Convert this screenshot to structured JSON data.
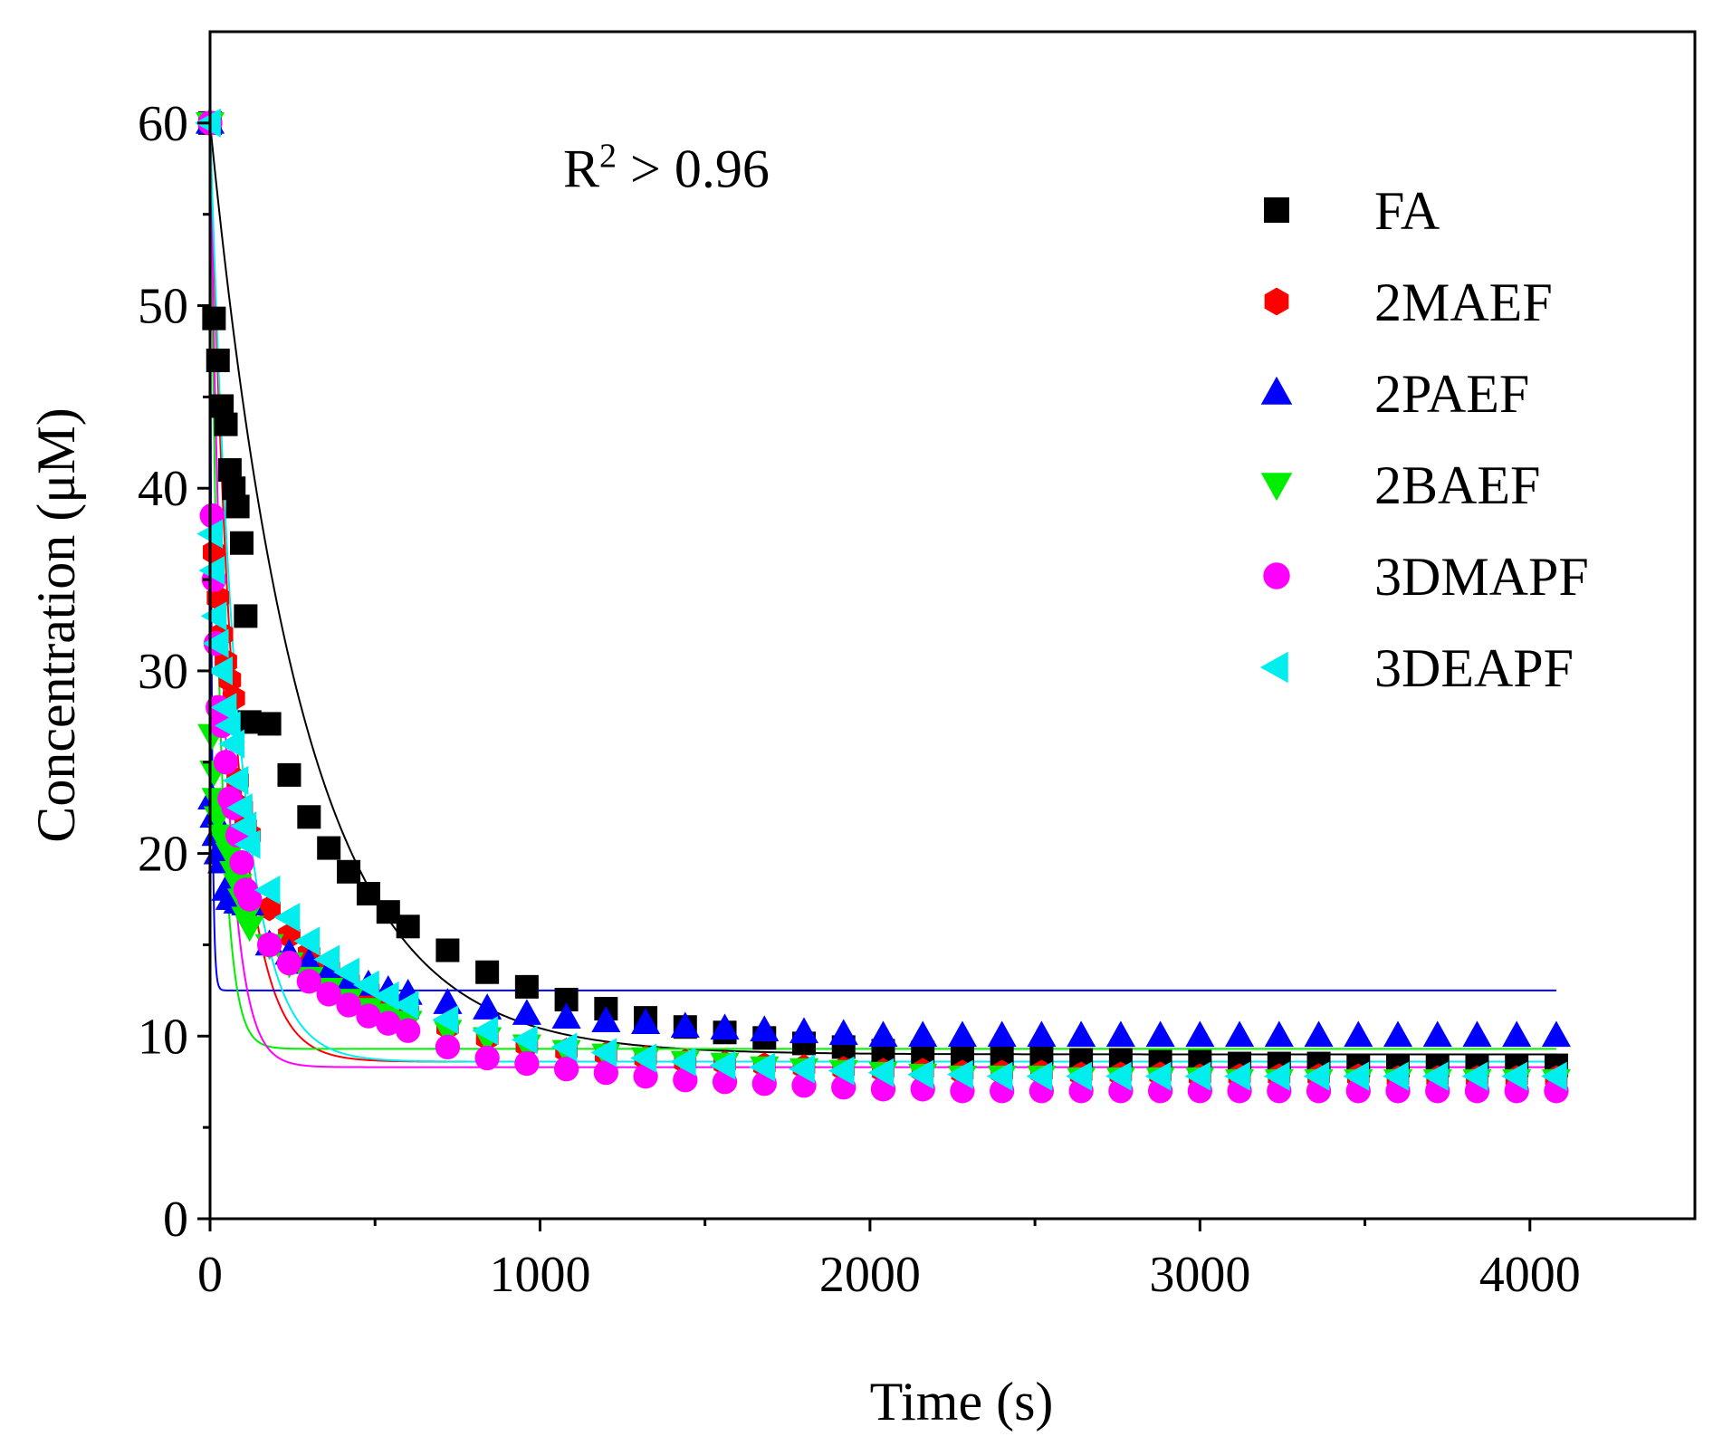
{
  "chart_data": {
    "type": "scatter",
    "title": "",
    "xlabel": "Time (s)",
    "ylabel": "Concentration (μM)",
    "xlim": [
      0,
      4500
    ],
    "ylim": [
      0,
      65
    ],
    "xticks": [
      0,
      1000,
      2000,
      3000,
      4000
    ],
    "xtick_labels": [
      "0",
      "1000",
      "2000",
      "3000",
      "4000"
    ],
    "yticks": [
      0,
      10,
      20,
      30,
      40,
      50,
      60
    ],
    "ytick_labels": [
      "0",
      "10",
      "20",
      "30",
      "40",
      "50",
      "60"
    ],
    "annotation": {
      "base": "R",
      "sup": "2",
      "rest": " > 0.96",
      "x": 1070,
      "y": 56.5
    },
    "legend_position": "top-right",
    "series": [
      {
        "name": "FA",
        "color": "#000000",
        "marker": "square",
        "x": [
          0,
          12,
          24,
          36,
          48,
          60,
          72,
          84,
          96,
          108,
          120,
          180,
          240,
          300,
          360,
          420,
          480,
          540,
          600,
          720,
          840,
          960,
          1080,
          1200,
          1320,
          1440,
          1560,
          1680,
          1800,
          1920,
          2040,
          2160,
          2280,
          2400,
          2520,
          2640,
          2760,
          2880,
          3000,
          3120,
          3240,
          3360,
          3480,
          3600,
          3720,
          3840,
          3960,
          4080
        ],
        "y": [
          60,
          49.3,
          47,
          44.5,
          43.5,
          41,
          40,
          39,
          37,
          33,
          27.2,
          27.1,
          24.3,
          22,
          20.3,
          19,
          17.8,
          16.8,
          16,
          14.7,
          13.5,
          12.7,
          12,
          11.5,
          11,
          10.5,
          10.2,
          9.9,
          9.6,
          9.4,
          9.2,
          9.1,
          9.0,
          8.9,
          8.8,
          8.7,
          8.7,
          8.6,
          8.6,
          8.5,
          8.5,
          8.5,
          8.4,
          8.4,
          8.4,
          8.4,
          8.4,
          8.4
        ]
      },
      {
        "name": "2MAEF",
        "color": "#ff0000",
        "marker": "hexagon",
        "x": [
          0,
          12,
          24,
          36,
          48,
          60,
          72,
          84,
          96,
          108,
          120,
          180,
          240,
          300,
          360,
          420,
          480,
          540,
          600,
          720,
          840,
          960,
          1080,
          1200,
          1320,
          1440,
          1560,
          1680,
          1800,
          1920,
          2040,
          2160,
          2280,
          2400,
          2520,
          2640,
          2760,
          2880,
          3000,
          3120,
          3240,
          3360,
          3480,
          3600,
          3720,
          3840,
          3960,
          4080
        ],
        "y": [
          60,
          36.5,
          34,
          32,
          30.5,
          29.5,
          28.5,
          24,
          22.5,
          21.5,
          21,
          17,
          15.5,
          14.5,
          13.7,
          13,
          12.5,
          11.8,
          11.3,
          10.5,
          9.9,
          9.5,
          9.2,
          9.0,
          8.8,
          8.6,
          8.5,
          8.4,
          8.3,
          8.2,
          8.1,
          8.1,
          8.0,
          8.0,
          8.0,
          7.9,
          7.9,
          7.9,
          7.8,
          7.8,
          7.8,
          7.8,
          7.8,
          7.7,
          7.7,
          7.7,
          7.7,
          7.7
        ]
      },
      {
        "name": "2PAEF",
        "color": "#0000ff",
        "marker": "triangle-up",
        "x": [
          0,
          6,
          12,
          18,
          24,
          36,
          48,
          60,
          72,
          84,
          96,
          108,
          120,
          180,
          240,
          300,
          360,
          420,
          480,
          540,
          600,
          720,
          840,
          960,
          1080,
          1200,
          1320,
          1440,
          1560,
          1680,
          1800,
          1920,
          2040,
          2160,
          2280,
          2400,
          2520,
          2640,
          2760,
          2880,
          3000,
          3120,
          3240,
          3360,
          3480,
          3600,
          3720,
          3840,
          3960,
          4080
        ],
        "y": [
          60,
          23,
          22,
          21,
          20,
          19.5,
          18,
          17.5,
          17.5,
          17.3,
          17.3,
          17.2,
          17.2,
          15,
          14.5,
          14,
          13.5,
          13,
          12.8,
          12.5,
          12.3,
          11.8,
          11.5,
          11.2,
          11,
          10.8,
          10.7,
          10.5,
          10.4,
          10.3,
          10.2,
          10.1,
          10.0,
          10.0,
          10.0,
          10.0,
          10.0,
          10.0,
          10.0,
          10.0,
          10.0,
          10.0,
          10.0,
          10.0,
          10.0,
          10.0,
          10.0,
          10.0,
          10.0,
          10.0
        ]
      },
      {
        "name": "2BAEF",
        "color": "#00ee00",
        "marker": "triangle-down",
        "x": [
          0,
          6,
          12,
          18,
          24,
          36,
          48,
          60,
          72,
          84,
          96,
          108,
          120,
          180,
          240,
          300,
          360,
          420,
          480,
          540,
          600,
          720,
          840,
          960,
          1080,
          1200,
          1320,
          1440,
          1560,
          1680,
          1800,
          1920,
          2040,
          2160,
          2280,
          2400,
          2520,
          2640,
          2760,
          2880,
          3000,
          3120,
          3240,
          3360,
          3480,
          3600,
          3720,
          3840,
          3960,
          4080
        ],
        "y": [
          60,
          26.5,
          24.5,
          23,
          22,
          21,
          20.5,
          20,
          19,
          18.3,
          17.5,
          16.5,
          16,
          15,
          14,
          13.2,
          12.6,
          12,
          11.5,
          11.2,
          10.8,
          10.3,
          9.9,
          9.5,
          9.2,
          9.0,
          8.8,
          8.6,
          8.5,
          8.3,
          8.2,
          8.1,
          8.0,
          7.9,
          7.8,
          7.8,
          7.8,
          7.7,
          7.7,
          7.7,
          7.7,
          7.6,
          7.6,
          7.6,
          7.6,
          7.6,
          7.6,
          7.6,
          7.6,
          7.6
        ]
      },
      {
        "name": "3DMAPF",
        "color": "#ff00ff",
        "marker": "circle",
        "x": [
          0,
          6,
          12,
          18,
          24,
          36,
          48,
          60,
          72,
          84,
          96,
          108,
          120,
          180,
          240,
          300,
          360,
          420,
          480,
          540,
          600,
          720,
          840,
          960,
          1080,
          1200,
          1320,
          1440,
          1560,
          1680,
          1800,
          1920,
          2040,
          2160,
          2280,
          2400,
          2520,
          2640,
          2760,
          2880,
          3000,
          3120,
          3240,
          3360,
          3480,
          3600,
          3720,
          3840,
          3960,
          4080
        ],
        "y": [
          60,
          38.5,
          35,
          31.5,
          28,
          27,
          25,
          23,
          22.5,
          21,
          19.5,
          18,
          17.5,
          15,
          14,
          13,
          12.3,
          11.7,
          11.1,
          10.7,
          10.3,
          9.4,
          8.8,
          8.5,
          8.2,
          8.0,
          7.8,
          7.6,
          7.5,
          7.4,
          7.3,
          7.2,
          7.1,
          7.1,
          7.0,
          7.0,
          7.0,
          7.0,
          7.0,
          7.0,
          7.0,
          7.0,
          7.0,
          7.0,
          7.0,
          7.0,
          7.0,
          7.0,
          7.0,
          7.0
        ]
      },
      {
        "name": "3DEAPF",
        "color": "#00eeee",
        "marker": "triangle-left",
        "x": [
          0,
          6,
          12,
          18,
          24,
          36,
          48,
          60,
          72,
          84,
          96,
          108,
          120,
          180,
          240,
          300,
          360,
          420,
          480,
          540,
          600,
          720,
          840,
          960,
          1080,
          1200,
          1320,
          1440,
          1560,
          1680,
          1800,
          1920,
          2040,
          2160,
          2280,
          2400,
          2520,
          2640,
          2760,
          2880,
          3000,
          3120,
          3240,
          3360,
          3480,
          3600,
          3720,
          3840,
          3960,
          4080
        ],
        "y": [
          60,
          37.5,
          35.5,
          33,
          31.5,
          30,
          28,
          27,
          26,
          24,
          22.5,
          21.5,
          20.5,
          18,
          16.5,
          15.2,
          14.2,
          13.5,
          12.8,
          12.2,
          11.7,
          10.9,
          10.3,
          9.8,
          9.4,
          9.1,
          8.8,
          8.6,
          8.4,
          8.3,
          8.2,
          8.1,
          8.0,
          7.9,
          7.9,
          7.8,
          7.8,
          7.8,
          7.8,
          7.8,
          7.8,
          7.8,
          7.8,
          7.8,
          7.8,
          7.8,
          7.8,
          7.8,
          7.8,
          7.8
        ]
      }
    ],
    "fits": [
      {
        "series": "FA",
        "color": "#000000",
        "C0": 60,
        "Cinf": 9.0,
        "tau": 280
      },
      {
        "series": "2MAEF",
        "color": "#ff0000",
        "C0": 60,
        "Cinf": 8.6,
        "tau": 75
      },
      {
        "series": "2PAEF",
        "color": "#0000ff",
        "C0": 60,
        "Cinf": 12.5,
        "tau": 5
      },
      {
        "series": "2BAEF",
        "color": "#00ee00",
        "C0": 60,
        "Cinf": 9.3,
        "tau": 30
      },
      {
        "series": "3DMAPF",
        "color": "#ff00ff",
        "C0": 60,
        "Cinf": 8.3,
        "tau": 45
      },
      {
        "series": "3DEAPF",
        "color": "#00eeee",
        "C0": 60,
        "Cinf": 8.6,
        "tau": 85
      }
    ]
  }
}
